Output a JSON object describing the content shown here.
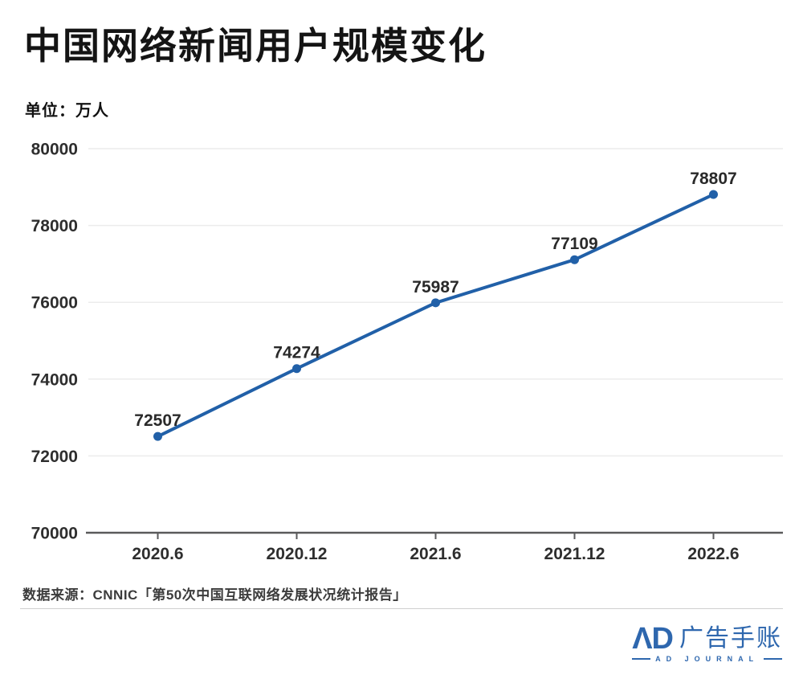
{
  "page": {
    "title": "中国网络新闻用户规模变化",
    "unit_label": "单位：万人"
  },
  "chart_data": {
    "type": "line",
    "title": "中国网络新闻用户规模变化",
    "unit": "万人",
    "categories": [
      "2020.6",
      "2020.12",
      "2021.6",
      "2021.12",
      "2022.6"
    ],
    "values": [
      72507,
      74274,
      75987,
      77109,
      78807
    ],
    "data_labels": [
      "72507",
      "74274",
      "75987",
      "77109",
      "78807"
    ],
    "xlabel": "",
    "ylabel": "",
    "ylim": [
      70000,
      80000
    ],
    "yticks": [
      70000,
      72000,
      74000,
      76000,
      78000,
      80000
    ],
    "grid": "horizontal",
    "legend_position": "none",
    "line_color": "#2160a8",
    "point_color": "#2160a8",
    "grid_color": "#ececec",
    "axis_color": "#5a5a5b"
  },
  "source": {
    "text": "数据来源：CNNIC「第50次中国互联网络发展状况统计报告」"
  },
  "logo": {
    "mark": "ΛD",
    "brand": "广告手账",
    "journal": "AD JOURNAL"
  },
  "colors": {
    "accent_blue": "#2160a8",
    "logo_blue": "#2e67ae",
    "title_text": "#141414",
    "tick_text": "#2e2e2e",
    "source_text": "#3c3c3c",
    "divider": "#cfcfcf",
    "background": "#ffffff"
  }
}
